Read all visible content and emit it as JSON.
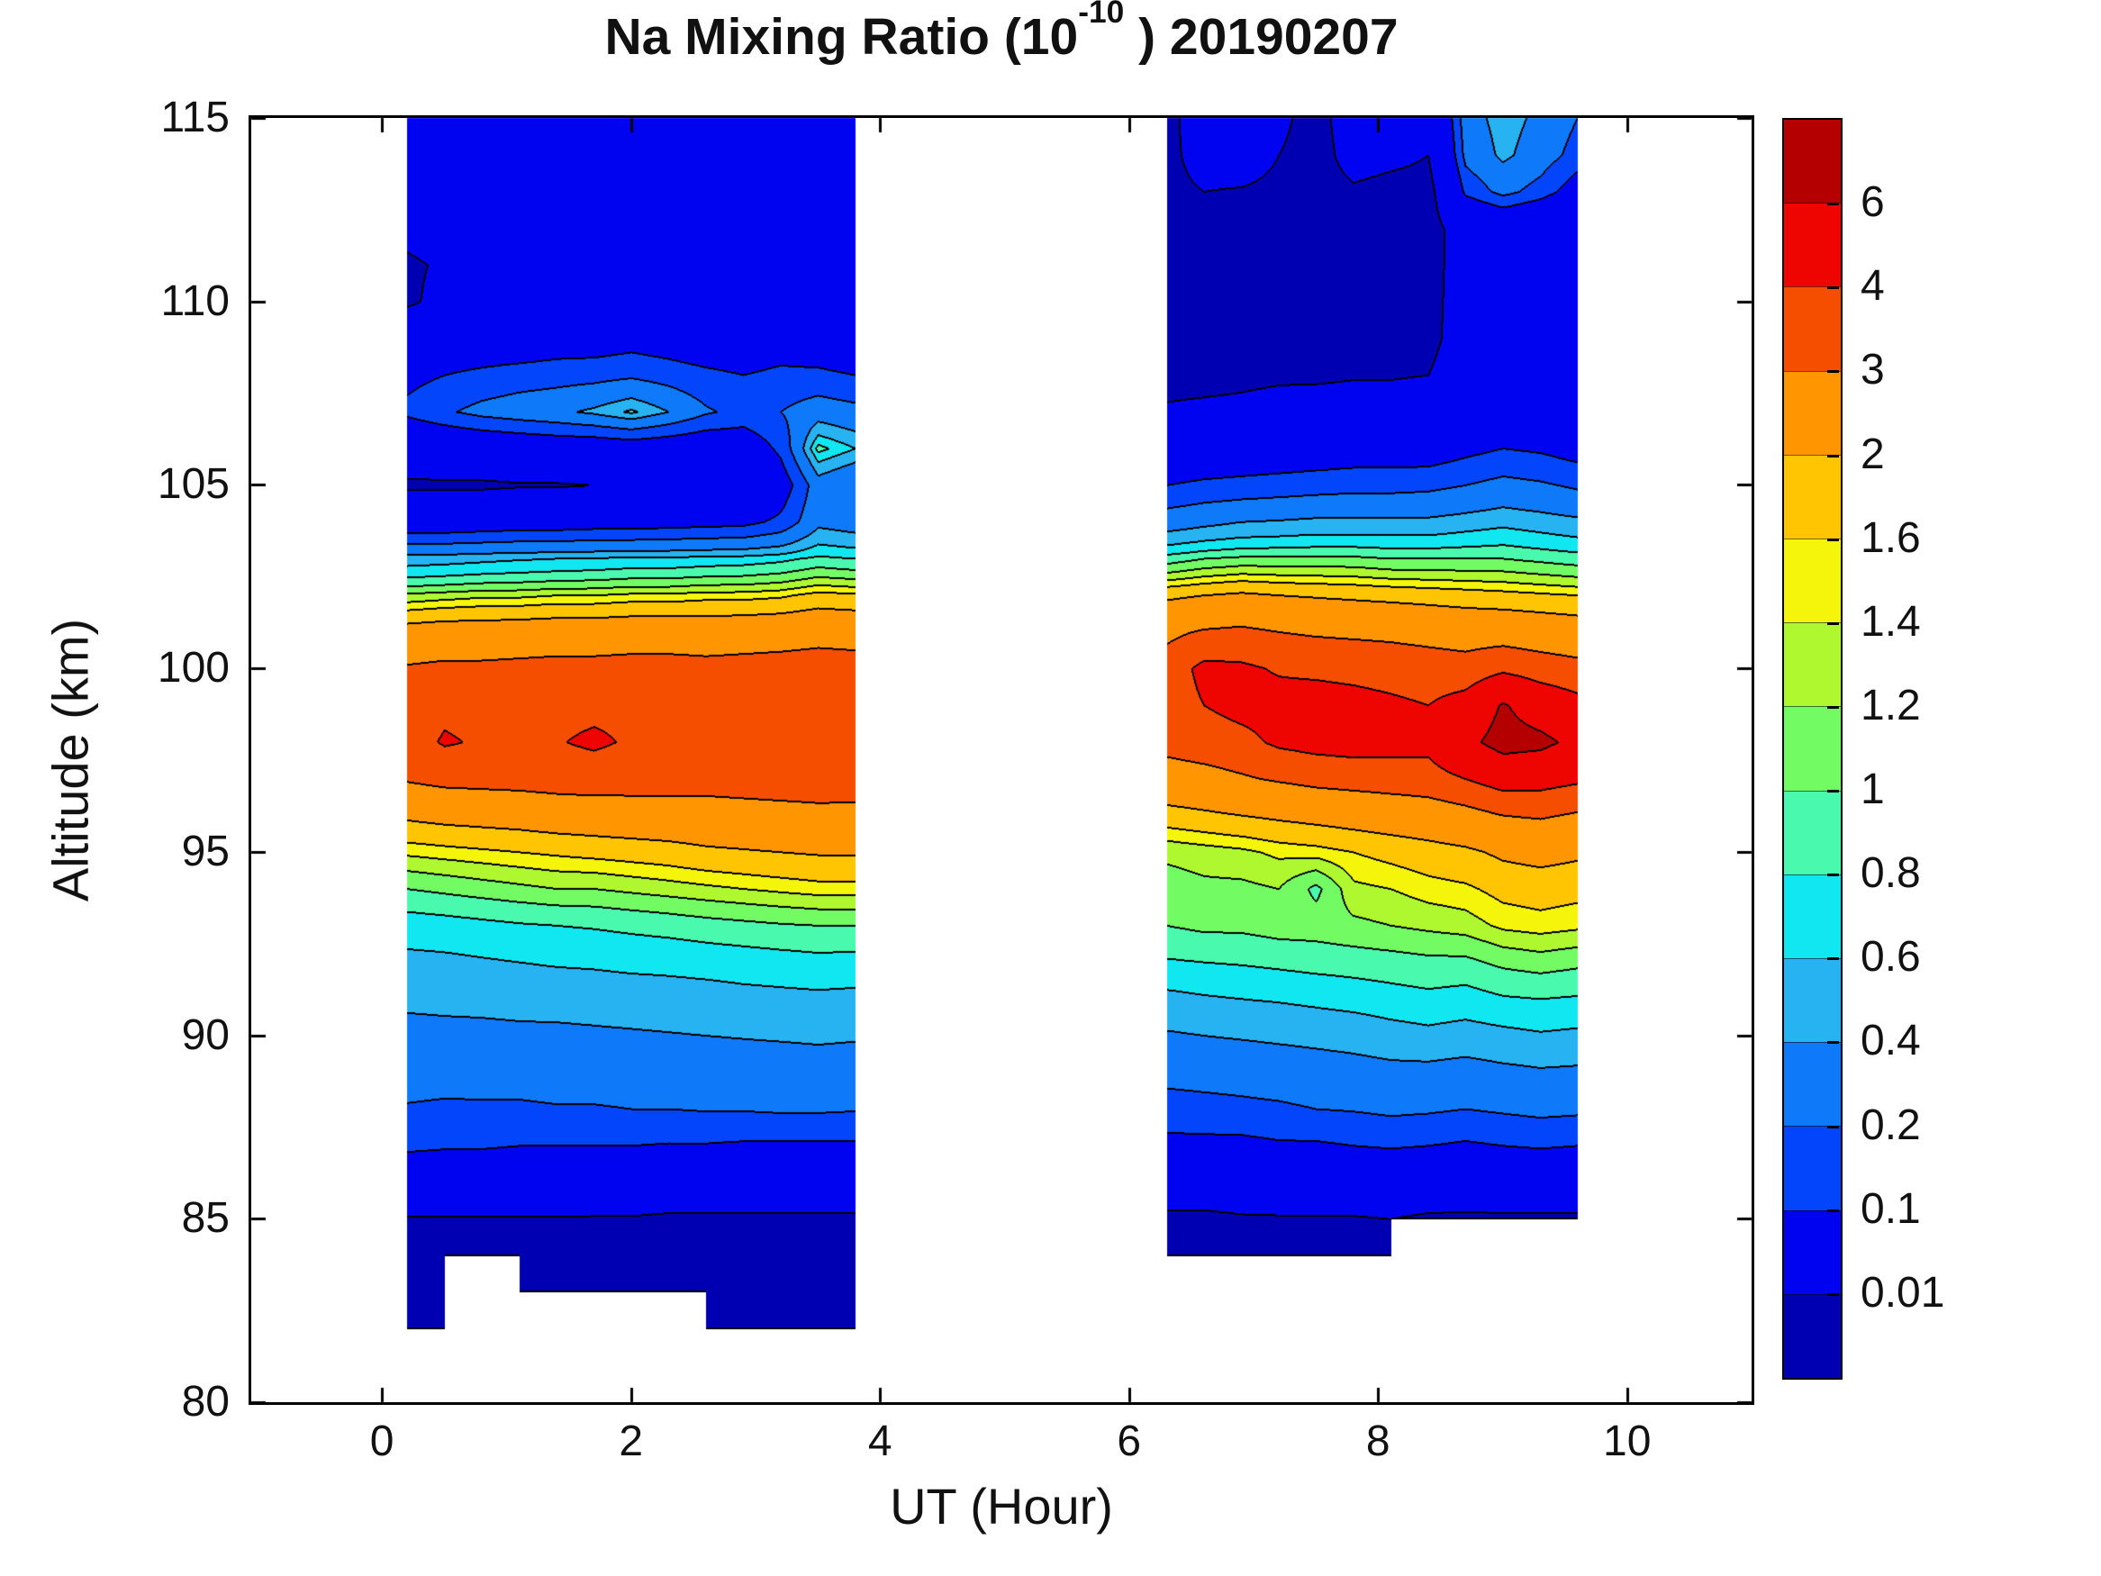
{
  "title": {
    "prefix": "Na Mixing Ratio (10",
    "superscript": "-10",
    "suffix": " ) 20190207"
  },
  "axes": {
    "xlabel": "UT (Hour)",
    "ylabel": "Altitude (km)",
    "xticks": [
      0,
      2,
      4,
      6,
      8,
      10
    ],
    "yticks": [
      80,
      85,
      90,
      95,
      100,
      105,
      110,
      115
    ],
    "xlim": [
      -1.05,
      11.0
    ],
    "ylim": [
      80,
      115
    ]
  },
  "colorbar": {
    "tick_labels": [
      "6",
      "4",
      "3",
      "2",
      "1.6",
      "1.4",
      "1.2",
      "1",
      "0.8",
      "0.6",
      "0.4",
      "0.2",
      "0.1",
      "0.01"
    ]
  },
  "chart_data": {
    "type": "heatmap",
    "subtype": "filled_contour",
    "title": "Na Mixing Ratio (10^-10 ) 20190207",
    "xlabel": "UT (Hour)",
    "ylabel": "Altitude (km)",
    "xlim": [
      -1.05,
      11.0
    ],
    "ylim": [
      80,
      115
    ],
    "units": "10^-10 mixing ratio",
    "levels": [
      0.01,
      0.1,
      0.2,
      0.4,
      0.6,
      0.8,
      1,
      1.2,
      1.4,
      1.6,
      2,
      3,
      4,
      6
    ],
    "level_colors": [
      "#0000B3",
      "#0003F0",
      "#0345FA",
      "#0E7AFA",
      "#27B3F2",
      "#10E7F0",
      "#48F9AE",
      "#73FB64",
      "#AFF830",
      "#F4F50B",
      "#FFC503",
      "#FF9500",
      "#F64E00",
      "#EE0400",
      "#B40000"
    ],
    "contour_line_color": "#000000",
    "background": "#ffffff",
    "altitudes": [
      82,
      83,
      84,
      85,
      86,
      87,
      88,
      89,
      90,
      91,
      92,
      93,
      94,
      95,
      96,
      97,
      98,
      99,
      100,
      101,
      102,
      103,
      104,
      105,
      106,
      107,
      108,
      109,
      110,
      111,
      112,
      113,
      114,
      115
    ],
    "segments": [
      {
        "name": "segment-1",
        "times": [
          0.2,
          0.5,
          0.8,
          1.1,
          1.4,
          1.7,
          2.0,
          2.3,
          2.6,
          2.9,
          3.2,
          3.5,
          3.8
        ],
        "values": [
          [
            0.006,
            0.007,
            0.008,
            0.009,
            0.04,
            0.12,
            0.19,
            0.26,
            0.33,
            0.45,
            0.55,
            0.7,
            1.0,
            1.45,
            2.1,
            3.1,
            3.6,
            3.5,
            3.1,
            2.3,
            1.25,
            0.5,
            0.05,
            0.008,
            0.03,
            0.12,
            0.08,
            0.04,
            0.008,
            0.008,
            0.015,
            0.02,
            0.02,
            0.02
          ],
          [
            0.006,
            0.007,
            0.008,
            0.009,
            0.04,
            0.11,
            0.18,
            0.26,
            0.34,
            0.46,
            0.56,
            0.72,
            1.05,
            1.5,
            2.2,
            3.3,
            4.1,
            3.8,
            3.2,
            2.4,
            1.3,
            0.52,
            0.05,
            0.008,
            0.035,
            0.18,
            0.1,
            0.05,
            0.015,
            0.012,
            0.02,
            0.02,
            0.02,
            0.02
          ],
          [
            null,
            null,
            0.007,
            0.009,
            0.038,
            0.11,
            0.18,
            0.27,
            0.35,
            0.46,
            0.58,
            0.75,
            1.1,
            1.55,
            2.25,
            3.35,
            3.9,
            3.7,
            3.2,
            2.4,
            1.35,
            0.55,
            0.055,
            0.008,
            0.04,
            0.25,
            0.12,
            0.05,
            0.02,
            0.015,
            0.02,
            0.02,
            0.02,
            0.02
          ],
          [
            0.006,
            0.007,
            0.008,
            0.009,
            0.035,
            0.1,
            0.18,
            0.27,
            0.36,
            0.47,
            0.6,
            0.78,
            1.15,
            1.6,
            2.3,
            3.4,
            3.85,
            3.7,
            3.25,
            2.45,
            1.35,
            0.58,
            0.06,
            0.009,
            0.045,
            0.3,
            0.14,
            0.05,
            0.02,
            0.02,
            0.02,
            0.02,
            0.02,
            0.02
          ],
          [
            null,
            0.007,
            0.008,
            0.009,
            0.035,
            0.1,
            0.19,
            0.28,
            0.36,
            0.48,
            0.62,
            0.8,
            1.2,
            1.65,
            2.4,
            3.5,
            3.95,
            3.75,
            3.3,
            2.5,
            1.4,
            0.6,
            0.06,
            0.009,
            0.05,
            0.35,
            0.15,
            0.06,
            0.02,
            0.02,
            0.02,
            0.02,
            0.02,
            0.02
          ],
          [
            0.006,
            0.007,
            0.008,
            0.009,
            0.033,
            0.1,
            0.19,
            0.28,
            0.37,
            0.49,
            0.63,
            0.82,
            1.2,
            1.7,
            2.45,
            3.55,
            4.15,
            3.8,
            3.3,
            2.5,
            1.4,
            0.62,
            0.065,
            0.01,
            0.05,
            0.45,
            0.16,
            0.06,
            0.02,
            0.02,
            0.02,
            0.02,
            0.02,
            0.02
          ],
          [
            null,
            0.007,
            0.008,
            0.009,
            0.033,
            0.1,
            0.2,
            0.29,
            0.38,
            0.5,
            0.65,
            0.85,
            1.25,
            1.75,
            2.5,
            3.5,
            3.9,
            3.8,
            3.35,
            2.55,
            1.45,
            0.65,
            0.065,
            0.01,
            0.055,
            0.65,
            0.18,
            0.07,
            0.025,
            0.02,
            0.02,
            0.02,
            0.02,
            0.02
          ],
          [
            null,
            0.007,
            0.008,
            0.008,
            0.03,
            0.095,
            0.2,
            0.29,
            0.39,
            0.51,
            0.66,
            0.88,
            1.3,
            1.8,
            2.55,
            3.45,
            3.85,
            3.75,
            3.35,
            2.55,
            1.45,
            0.65,
            0.07,
            0.012,
            0.05,
            0.4,
            0.15,
            0.06,
            0.02,
            0.02,
            0.02,
            0.02,
            0.02,
            0.02
          ],
          [
            0.006,
            0.007,
            0.008,
            0.008,
            0.03,
            0.095,
            0.21,
            0.3,
            0.4,
            0.52,
            0.68,
            0.92,
            1.35,
            1.9,
            2.6,
            3.4,
            3.8,
            3.7,
            3.3,
            2.5,
            1.5,
            0.68,
            0.075,
            0.015,
            0.045,
            0.22,
            0.12,
            0.05,
            0.02,
            0.02,
            0.02,
            0.02,
            0.02,
            0.02
          ],
          [
            0.006,
            0.007,
            0.008,
            0.008,
            0.03,
            0.09,
            0.21,
            0.31,
            0.41,
            0.54,
            0.7,
            0.95,
            1.4,
            1.95,
            2.65,
            3.45,
            3.8,
            3.7,
            3.35,
            2.55,
            1.5,
            0.7,
            0.08,
            0.02,
            0.05,
            0.16,
            0.1,
            0.05,
            0.02,
            0.02,
            0.02,
            0.02,
            0.02,
            0.02
          ],
          [
            0.006,
            0.007,
            0.008,
            0.008,
            0.03,
            0.09,
            0.22,
            0.31,
            0.42,
            0.55,
            0.72,
            0.98,
            1.45,
            2.0,
            2.7,
            3.5,
            3.85,
            3.75,
            3.4,
            2.6,
            1.55,
            0.75,
            0.12,
            0.06,
            0.12,
            0.2,
            0.12,
            0.06,
            0.025,
            0.02,
            0.02,
            0.02,
            0.02,
            0.02
          ],
          [
            0.006,
            0.007,
            0.008,
            0.008,
            0.03,
            0.09,
            0.22,
            0.32,
            0.43,
            0.56,
            0.74,
            1.0,
            1.5,
            2.05,
            2.75,
            3.55,
            3.9,
            3.8,
            3.45,
            2.7,
            1.7,
            0.85,
            0.35,
            0.3,
            0.9,
            0.3,
            0.12,
            0.05,
            0.02,
            0.02,
            0.02,
            0.02,
            0.02,
            0.02
          ],
          [
            0.006,
            0.007,
            0.008,
            0.008,
            0.03,
            0.09,
            0.21,
            0.31,
            0.42,
            0.55,
            0.73,
            1.0,
            1.5,
            2.05,
            2.75,
            3.5,
            3.85,
            3.75,
            3.4,
            2.65,
            1.65,
            0.8,
            0.3,
            0.2,
            0.6,
            0.25,
            0.1,
            0.04,
            0.02,
            0.02,
            0.02,
            0.02,
            0.02,
            0.02
          ]
        ]
      },
      {
        "name": "segment-2",
        "times": [
          6.3,
          6.6,
          6.9,
          7.2,
          7.5,
          7.8,
          8.1,
          8.4,
          8.7,
          9.0,
          9.3,
          9.6
        ],
        "values": [
          [
            null,
            null,
            0.006,
            0.008,
            0.02,
            0.08,
            0.15,
            0.25,
            0.38,
            0.55,
            0.78,
            1.0,
            1.1,
            1.25,
            1.8,
            2.6,
            3.3,
            3.5,
            3.45,
            2.8,
            1.9,
            0.9,
            0.3,
            0.1,
            0.035,
            0.012,
            0.006,
            0.005,
            0.005,
            0.005,
            0.005,
            0.005,
            0.005,
            0.005
          ],
          [
            null,
            null,
            0.006,
            0.008,
            0.02,
            0.08,
            0.16,
            0.26,
            0.4,
            0.58,
            0.8,
            1.05,
            1.15,
            1.3,
            1.9,
            2.7,
            3.5,
            4.0,
            4.3,
            3.1,
            2.0,
            1.0,
            0.35,
            0.12,
            0.04,
            0.014,
            0.006,
            0.005,
            0.005,
            0.005,
            0.005,
            0.01,
            0.03,
            0.04
          ],
          [
            null,
            null,
            0.006,
            0.009,
            0.02,
            0.08,
            0.17,
            0.27,
            0.42,
            0.6,
            0.82,
            1.05,
            1.15,
            1.35,
            2.0,
            2.9,
            3.7,
            4.35,
            4.2,
            3.2,
            2.1,
            1.05,
            0.4,
            0.13,
            0.045,
            0.015,
            0.007,
            0.005,
            0.005,
            0.005,
            0.005,
            0.008,
            0.05,
            0.06
          ],
          [
            null,
            null,
            0.006,
            0.009,
            0.025,
            0.09,
            0.18,
            0.29,
            0.44,
            0.62,
            0.85,
            1.1,
            1.2,
            1.45,
            2.1,
            3.1,
            4.2,
            4.4,
            3.9,
            3.0,
            2.0,
            1.05,
            0.42,
            0.14,
            0.05,
            0.018,
            0.008,
            0.005,
            0.005,
            0.005,
            0.005,
            0.005,
            0.01,
            0.015
          ],
          [
            null,
            null,
            0.007,
            0.009,
            0.025,
            0.09,
            0.2,
            0.31,
            0.46,
            0.65,
            0.88,
            1.1,
            0.95,
            1.5,
            2.2,
            3.3,
            4.4,
            4.5,
            3.8,
            2.9,
            1.95,
            1.05,
            0.45,
            0.15,
            0.055,
            0.02,
            0.008,
            0.005,
            0.005,
            0.005,
            0.005,
            0.005,
            0.005,
            0.005
          ],
          [
            null,
            null,
            0.007,
            0.009,
            0.03,
            0.1,
            0.21,
            0.33,
            0.48,
            0.68,
            0.9,
            1.15,
            1.35,
            1.6,
            2.3,
            3.4,
            4.5,
            4.4,
            3.7,
            2.85,
            1.9,
            1.05,
            0.45,
            0.16,
            0.06,
            0.02,
            0.009,
            0.005,
            0.005,
            0.005,
            0.005,
            0.008,
            0.02,
            0.03
          ],
          [
            null,
            null,
            0.007,
            0.01,
            0.03,
            0.11,
            0.23,
            0.35,
            0.52,
            0.72,
            0.92,
            1.2,
            1.4,
            1.7,
            2.4,
            3.5,
            4.4,
            4.2,
            3.6,
            2.8,
            1.85,
            1.0,
            0.45,
            0.16,
            0.06,
            0.02,
            0.009,
            0.005,
            0.005,
            0.005,
            0.005,
            0.006,
            0.015,
            0.02
          ],
          [
            null,
            null,
            null,
            0.008,
            0.03,
            0.1,
            0.22,
            0.35,
            0.55,
            0.75,
            0.95,
            1.25,
            1.5,
            1.8,
            2.5,
            3.6,
            4.3,
            4.0,
            3.5,
            2.7,
            1.8,
            1.0,
            0.45,
            0.17,
            0.06,
            0.025,
            0.01,
            0.006,
            0.006,
            0.006,
            0.006,
            0.006,
            0.01,
            0.015
          ],
          [
            null,
            null,
            null,
            0.008,
            0.025,
            0.09,
            0.2,
            0.33,
            0.52,
            0.72,
            0.95,
            1.3,
            1.55,
            1.9,
            2.7,
            4.0,
            5.5,
            4.5,
            3.4,
            2.6,
            1.75,
            1.0,
            0.5,
            0.2,
            0.08,
            0.04,
            0.03,
            0.025,
            0.022,
            0.02,
            0.02,
            0.12,
            0.25,
            0.3
          ],
          [
            null,
            null,
            null,
            0.008,
            0.03,
            0.1,
            0.22,
            0.36,
            0.55,
            0.78,
            1.05,
            1.45,
            1.7,
            2.1,
            3.0,
            4.6,
            6.8,
            6.2,
            3.8,
            2.6,
            1.7,
            1.0,
            0.55,
            0.25,
            0.1,
            0.05,
            0.04,
            0.03,
            0.028,
            0.025,
            0.03,
            0.25,
            0.45,
            0.5
          ],
          [
            null,
            null,
            null,
            0.008,
            0.03,
            0.11,
            0.24,
            0.38,
            0.58,
            0.8,
            1.1,
            1.5,
            1.75,
            2.2,
            3.1,
            4.5,
            6.5,
            5.0,
            3.5,
            2.5,
            1.65,
            0.95,
            0.5,
            0.22,
            0.09,
            0.04,
            0.025,
            0.02,
            0.018,
            0.015,
            0.02,
            0.15,
            0.3,
            0.35
          ],
          [
            null,
            null,
            null,
            0.008,
            0.03,
            0.1,
            0.23,
            0.37,
            0.56,
            0.78,
            1.05,
            1.45,
            1.7,
            2.1,
            2.9,
            4.2,
            5.5,
            4.4,
            3.3,
            2.4,
            1.6,
            0.9,
            0.45,
            0.18,
            0.07,
            0.03,
            0.015,
            0.01,
            0.01,
            0.01,
            0.012,
            0.06,
            0.15,
            0.2
          ]
        ]
      }
    ]
  }
}
